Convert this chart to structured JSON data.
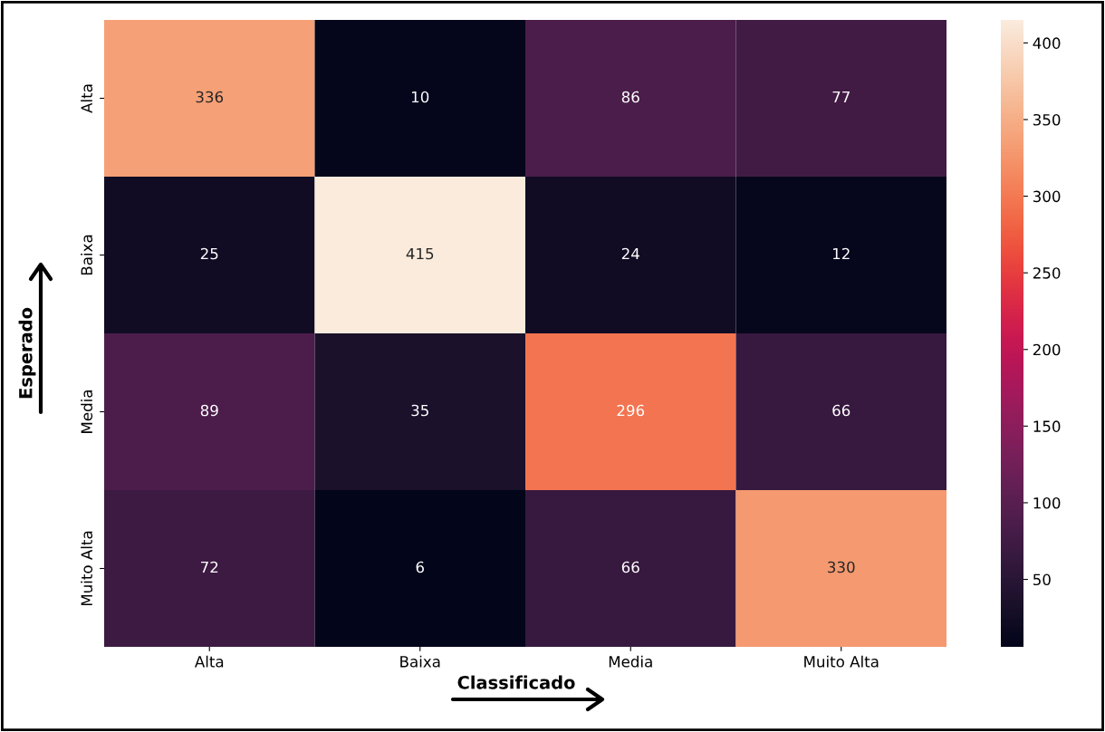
{
  "chart_data": {
    "type": "heatmap",
    "xlabel": "Classificado",
    "ylabel": "Esperado",
    "categories": [
      "Alta",
      "Baixa",
      "Media",
      "Muito Alta"
    ],
    "y_categories": [
      "Alta",
      "Baixa",
      "Media",
      "Muito Alta"
    ],
    "cells": [
      [
        336,
        10,
        86,
        77
      ],
      [
        25,
        415,
        24,
        12
      ],
      [
        89,
        35,
        296,
        66
      ],
      [
        72,
        6,
        66,
        330
      ]
    ],
    "clim": [
      6,
      415
    ],
    "cticks": [
      50,
      100,
      150,
      200,
      250,
      300,
      350,
      400
    ],
    "data_labels": true
  }
}
